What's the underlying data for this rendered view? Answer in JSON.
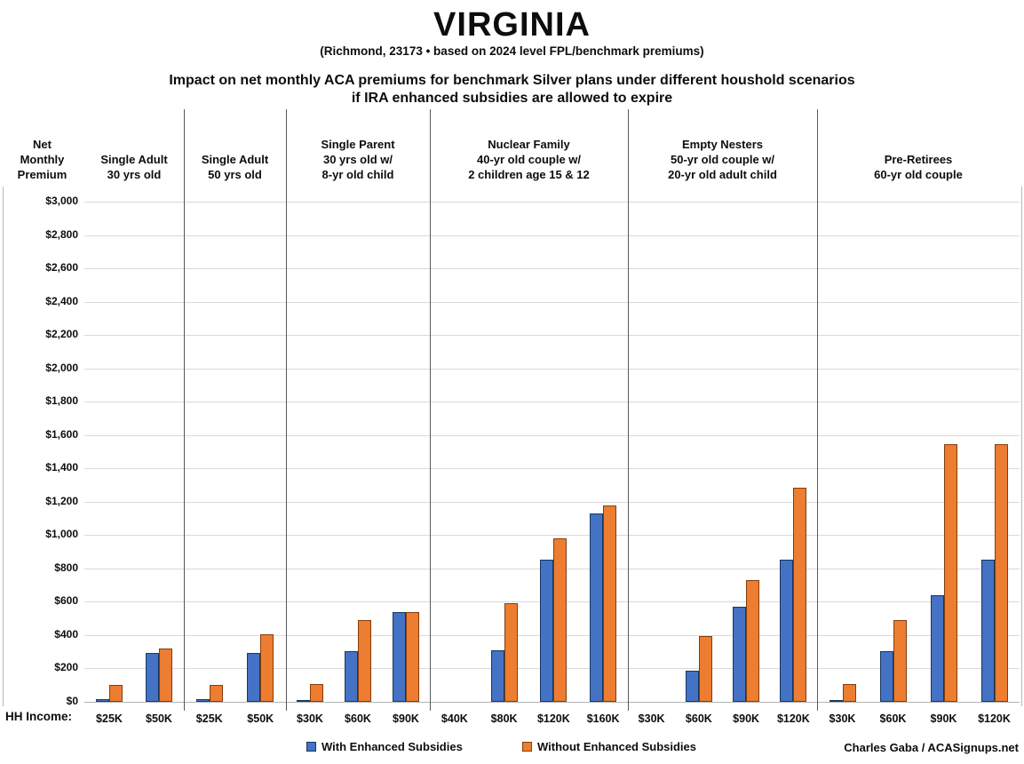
{
  "chart_data": {
    "type": "bar",
    "title": "VIRGINIA",
    "subtitle": "(Richmond, 23173 • based on 2024 level FPL/benchmark premiums)",
    "heading": [
      "Impact on net monthly ACA premiums for benchmark Silver plans under different houshold scenarios",
      "if IRA enhanced subsidies are allowed to expire"
    ],
    "y_axis_title_lines": [
      "Net",
      "Monthly",
      "Premium"
    ],
    "x_axis_title": "HH Income:",
    "ylim": [
      0,
      3000
    ],
    "ytick_step": 200,
    "ytick_labels": [
      "$0",
      "$200",
      "$400",
      "$600",
      "$800",
      "$1,000",
      "$1,200",
      "$1,400",
      "$1,600",
      "$1,800",
      "$2,000",
      "$2,200",
      "$2,400",
      "$2,600",
      "$2,800",
      "$3,000"
    ],
    "grid": true,
    "legend_position": "bottom",
    "series": [
      {
        "name": "With Enhanced Subsidies",
        "color": "#4472C4",
        "border": "#17375E"
      },
      {
        "name": "Without Enhanced Subsidies",
        "color": "#ED7D31",
        "border": "#843C0C"
      }
    ],
    "groups": [
      {
        "label_lines": [
          "Single Adult",
          "30 yrs old"
        ],
        "categories": [
          "$25K",
          "$50K"
        ],
        "with_enhanced": [
          15,
          295
        ],
        "without_enhanced": [
          100,
          320
        ]
      },
      {
        "label_lines": [
          "Single Adult",
          "50 yrs old"
        ],
        "categories": [
          "$25K",
          "$50K"
        ],
        "with_enhanced": [
          15,
          295
        ],
        "without_enhanced": [
          100,
          405
        ]
      },
      {
        "label_lines": [
          "Single Parent",
          "30 yrs old w/",
          "8-yr old child"
        ],
        "categories": [
          "$30K",
          "$60K",
          "$90K"
        ],
        "with_enhanced": [
          5,
          305,
          540
        ],
        "without_enhanced": [
          105,
          490,
          540
        ]
      },
      {
        "label_lines": [
          "Nuclear Family",
          "40-yr old couple w/",
          "2 children age 15 & 12"
        ],
        "categories": [
          "$40K",
          "$80K",
          "$120K",
          "$160K"
        ],
        "with_enhanced": [
          0,
          310,
          850,
          1130
        ],
        "without_enhanced": [
          0,
          590,
          980,
          1180
        ]
      },
      {
        "label_lines": [
          "Empty Nesters",
          "50-yr old couple w/",
          "20-yr old adult child"
        ],
        "categories": [
          "$30K",
          "$60K",
          "$90K",
          "$120K"
        ],
        "with_enhanced": [
          0,
          185,
          570,
          850
        ],
        "without_enhanced": [
          0,
          395,
          730,
          1285
        ]
      },
      {
        "label_lines": [
          "Pre-Retirees",
          "60-yr old couple"
        ],
        "categories": [
          "$30K",
          "$60K",
          "$90K",
          "$120K"
        ],
        "with_enhanced": [
          10,
          305,
          640,
          850
        ],
        "without_enhanced": [
          105,
          490,
          1545,
          1545
        ]
      }
    ],
    "credit": "Charles Gaba / ACASignups.net"
  }
}
